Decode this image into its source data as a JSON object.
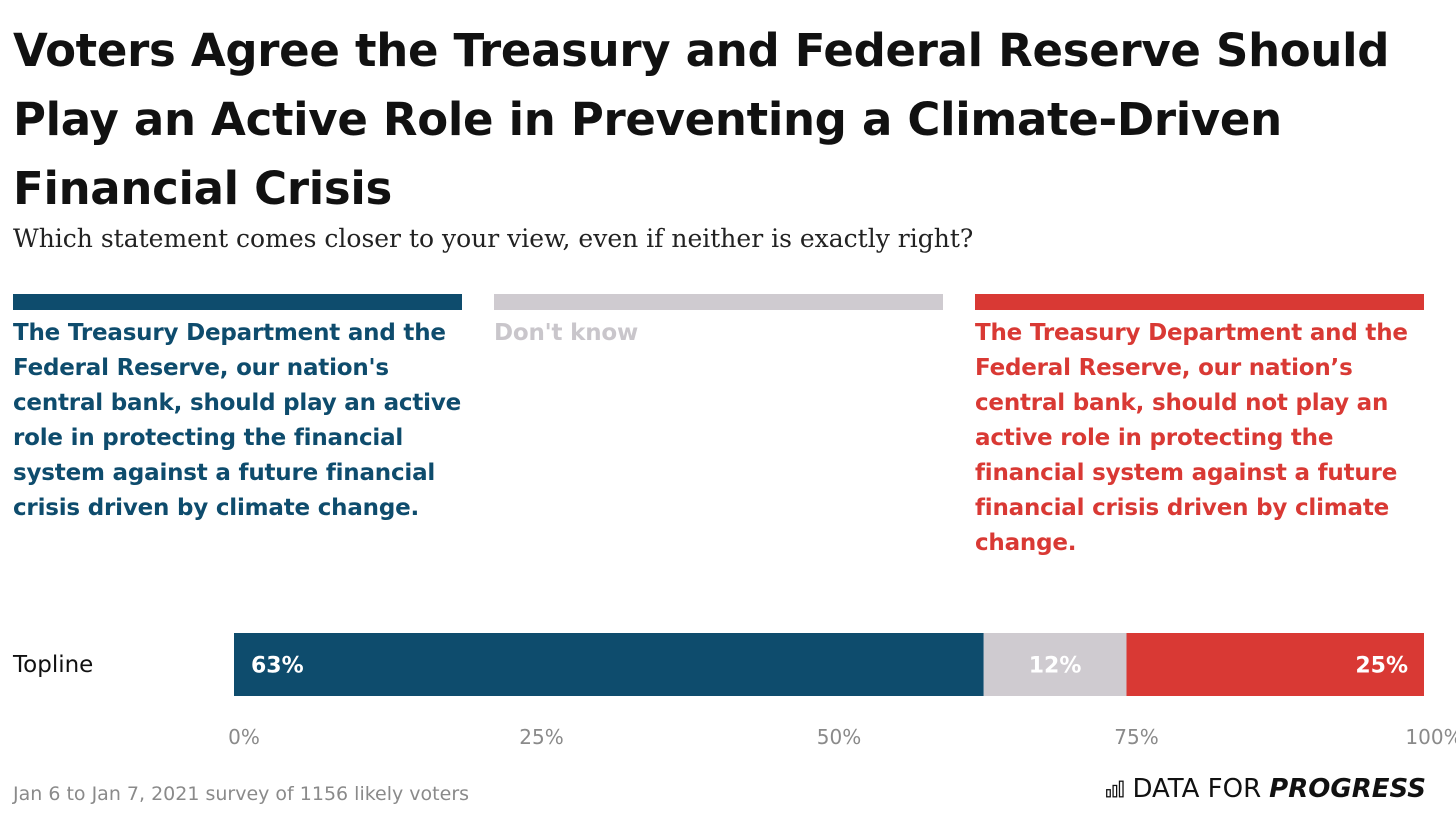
{
  "chart_data": {
    "type": "bar",
    "orientation": "horizontal",
    "stacked": true,
    "title": "Voters Agree the Treasury and Federal Reserve Should Play an Active Role in Preventing a Climate-Driven Financial Crisis",
    "subtitle": "Which statement comes closer to your view, even if neither is exactly right?",
    "categories": [
      "Topline"
    ],
    "series": [
      {
        "name": "The Treasury Department and the Federal Reserve, our nation's central bank, should play an active role in protecting the financial system against a future financial crisis driven by climate change.",
        "values": [
          63
        ],
        "labels": [
          "63%"
        ],
        "color": "#0e4c6d"
      },
      {
        "name": "Don't know",
        "values": [
          12
        ],
        "labels": [
          "12%"
        ],
        "color": "#cfcbd0"
      },
      {
        "name": "The Treasury Department and the Federal Reserve, our nation’s central bank, should not play an active role in protecting the financial system against a future financial crisis driven by climate change.",
        "values": [
          25
        ],
        "labels": [
          "25%"
        ],
        "color": "#d93934"
      }
    ],
    "xlim": [
      0,
      100
    ],
    "xticks": [
      0,
      25,
      50,
      75,
      100
    ],
    "xtick_labels": [
      "0%",
      "25%",
      "50%",
      "75%",
      "100%"
    ],
    "grid": false,
    "legend_position": "top"
  },
  "footnote": "Jan 6 to Jan 7, 2021 survey of 1156 likely voters",
  "brand": {
    "light": "DATA FOR",
    "strong": "PROGRESS",
    "icon": "bar-chart-icon"
  }
}
